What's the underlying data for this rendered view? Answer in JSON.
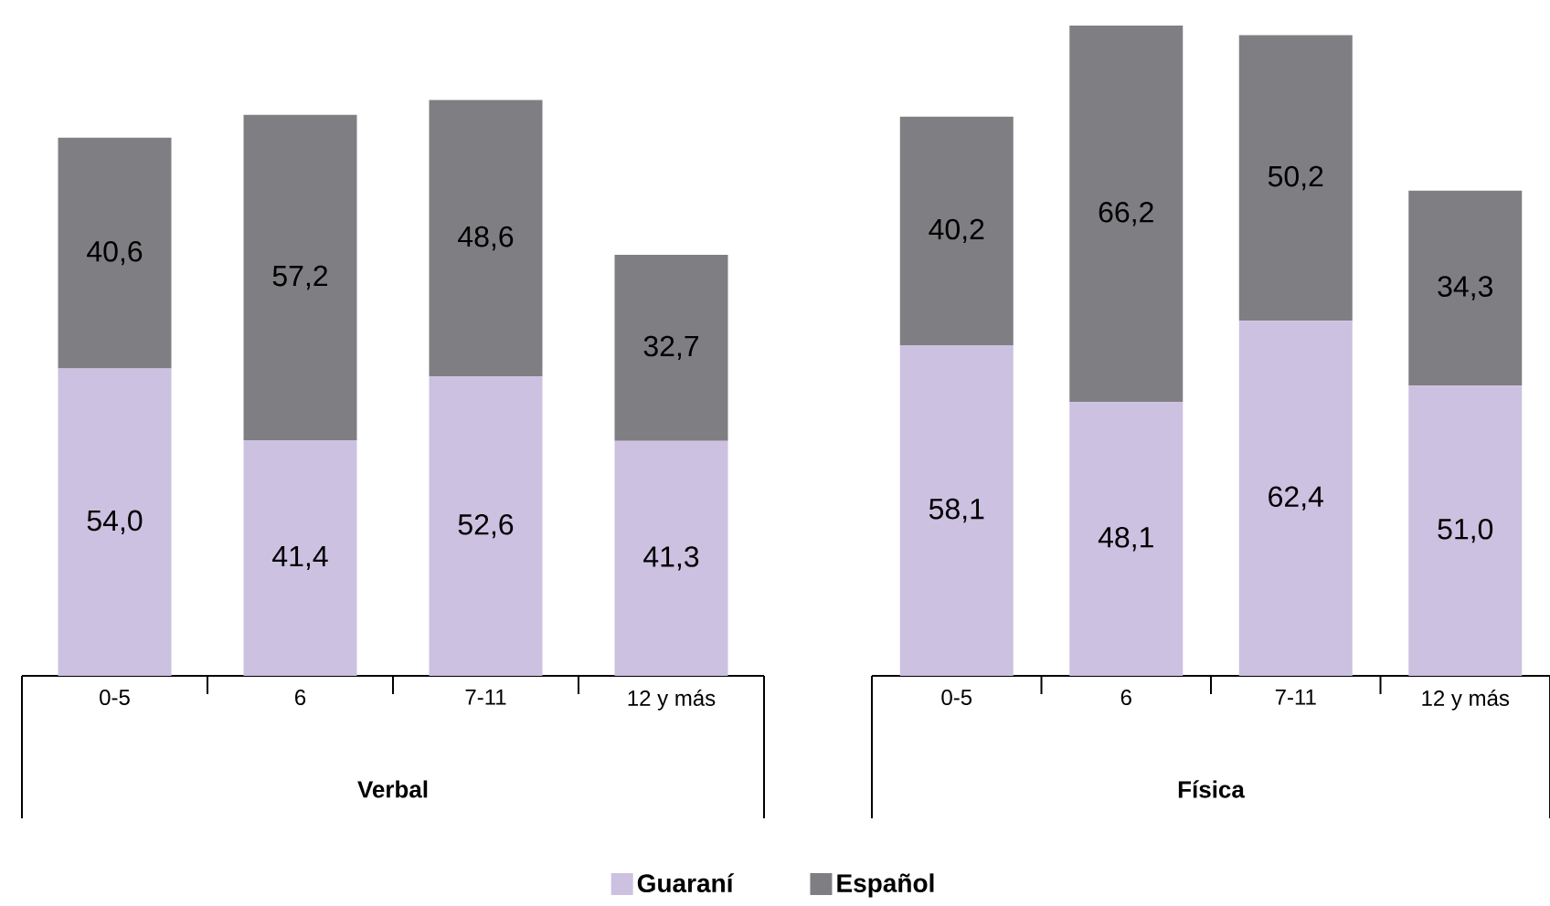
{
  "chart_data": [
    {
      "type": "bar",
      "stacked": true,
      "xlabel": "Verbal",
      "categories": [
        "0-5",
        "6",
        "7-11",
        "12 y más"
      ],
      "legend": "bottom",
      "series": [
        {
          "name": "Guaraní",
          "color": "#ccc1e0",
          "values": [
            54.0,
            41.4,
            52.6,
            41.3
          ],
          "value_labels": [
            "54,0",
            "41,4",
            "52,6",
            "41,3"
          ]
        },
        {
          "name": "Español",
          "color": "#7f7f83",
          "values": [
            40.6,
            57.2,
            48.6,
            32.7
          ],
          "value_labels": [
            "40,6",
            "57,2",
            "48,6",
            "32,7"
          ]
        }
      ]
    },
    {
      "type": "bar",
      "stacked": true,
      "xlabel": "Física",
      "categories": [
        "0-5",
        "6",
        "7-11",
        "12 y más"
      ],
      "series": [
        {
          "color": "#ccc1e0",
          "values": [
            58.1,
            48.1,
            62.4,
            51.0
          ],
          "value_labels": [
            "58,1",
            "48,1",
            "62,4",
            "51,0"
          ]
        },
        {
          "color": "#7f7f83",
          "values": [
            40.2,
            66.2,
            50.2,
            34.3
          ],
          "value_labels": [
            "40,2",
            "66,2",
            "50,2",
            "34,3"
          ]
        }
      ]
    }
  ]
}
